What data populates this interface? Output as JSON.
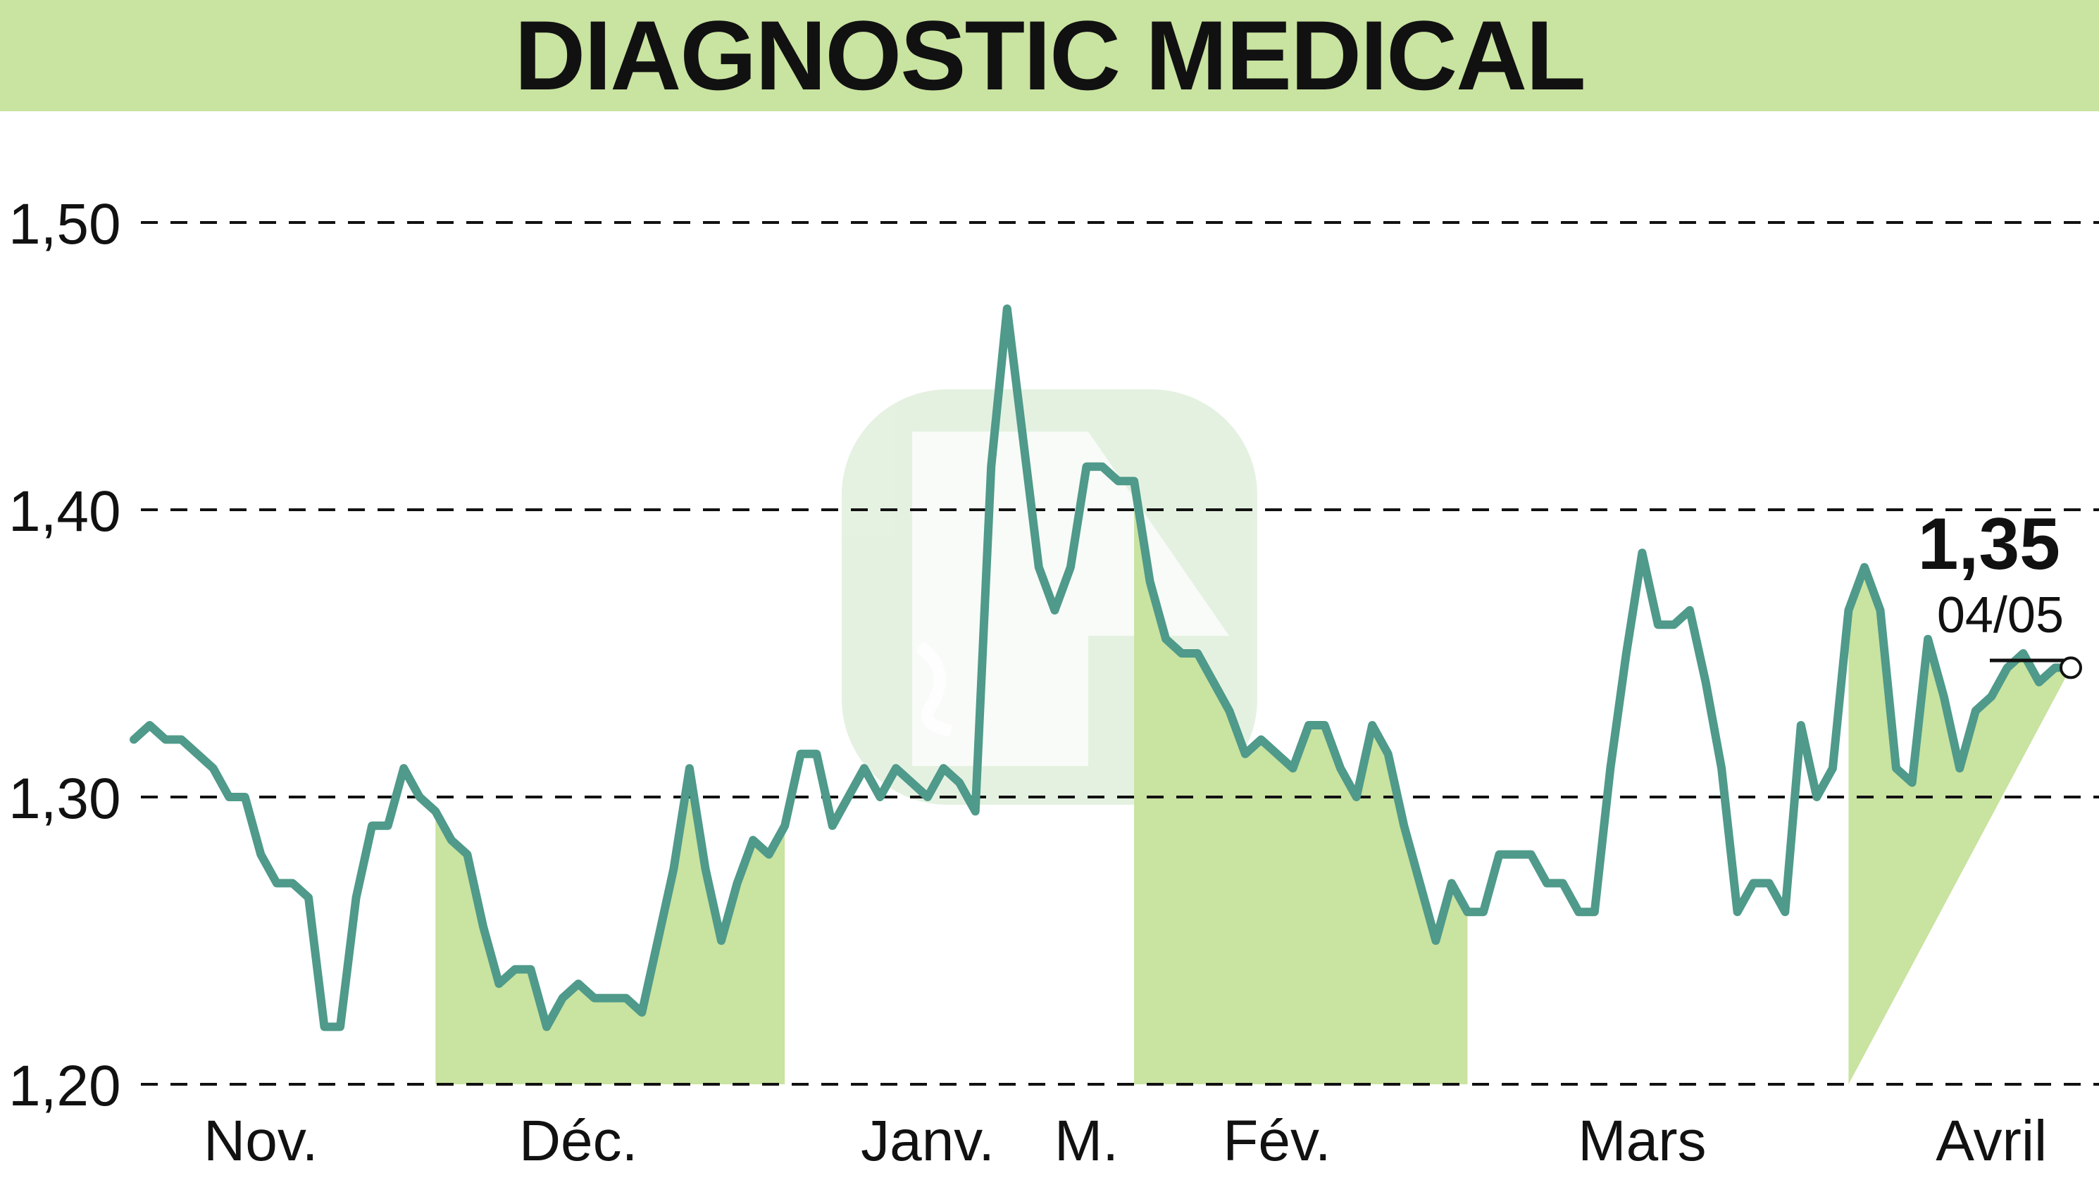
{
  "title": "DIAGNOSTIC MEDICAL",
  "colors": {
    "title_bg": "#c9e3a0",
    "line": "#4f9a8a",
    "fill": "#c9e3a0",
    "grid": "#111111"
  },
  "last_value": {
    "value": "1,35",
    "date": "04/05"
  },
  "chart_data": {
    "type": "line",
    "title": "DIAGNOSTIC MEDICAL",
    "xlabel": "",
    "ylabel": "",
    "ylim": [
      1.2,
      1.5
    ],
    "grid": "dashed horizontal",
    "y_ticks": [
      {
        "value": 1.5,
        "label": "1,50"
      },
      {
        "value": 1.4,
        "label": "1,40"
      },
      {
        "value": 1.3,
        "label": "1,30"
      },
      {
        "value": 1.2,
        "label": "1,20"
      }
    ],
    "x_ticks": [
      {
        "index": 8,
        "label": "Nov."
      },
      {
        "index": 28,
        "label": "Déc."
      },
      {
        "index": 50,
        "label": "Janv."
      },
      {
        "index": 60,
        "label": "M."
      },
      {
        "index": 72,
        "label": "Fév."
      },
      {
        "index": 95,
        "label": "Mars"
      },
      {
        "index": 117,
        "label": "Avril"
      }
    ],
    "shaded_ranges": [
      [
        19,
        41
      ],
      [
        63,
        84
      ],
      [
        108,
        129
      ]
    ],
    "series": [
      {
        "values": [
          1.32,
          1.325,
          1.32,
          1.32,
          1.315,
          1.31,
          1.3,
          1.3,
          1.28,
          1.27,
          1.27,
          1.265,
          1.22,
          1.22,
          1.265,
          1.29,
          1.29,
          1.31,
          1.3,
          1.295,
          1.285,
          1.28,
          1.255,
          1.235,
          1.24,
          1.24,
          1.22,
          1.23,
          1.235,
          1.23,
          1.23,
          1.23,
          1.225,
          1.25,
          1.275,
          1.31,
          1.275,
          1.25,
          1.27,
          1.285,
          1.28,
          1.29,
          1.315,
          1.315,
          1.29,
          1.3,
          1.31,
          1.3,
          1.31,
          1.305,
          1.3,
          1.31,
          1.305,
          1.295,
          1.415,
          1.47,
          1.425,
          1.38,
          1.365,
          1.38,
          1.415,
          1.415,
          1.41,
          1.41,
          1.375,
          1.355,
          1.35,
          1.35,
          1.34,
          1.33,
          1.315,
          1.32,
          1.315,
          1.31,
          1.325,
          1.325,
          1.31,
          1.3,
          1.325,
          1.315,
          1.29,
          1.27,
          1.25,
          1.27,
          1.26,
          1.26,
          1.28,
          1.28,
          1.28,
          1.27,
          1.27,
          1.26,
          1.26,
          1.31,
          1.35,
          1.385,
          1.36,
          1.36,
          1.365,
          1.34,
          1.31,
          1.26,
          1.27,
          1.27,
          1.26,
          1.325,
          1.3,
          1.31,
          1.365,
          1.38,
          1.365,
          1.31,
          1.305,
          1.355,
          1.335,
          1.31,
          1.33,
          1.335,
          1.345,
          1.35,
          1.34,
          1.345,
          1.345
        ]
      }
    ]
  }
}
